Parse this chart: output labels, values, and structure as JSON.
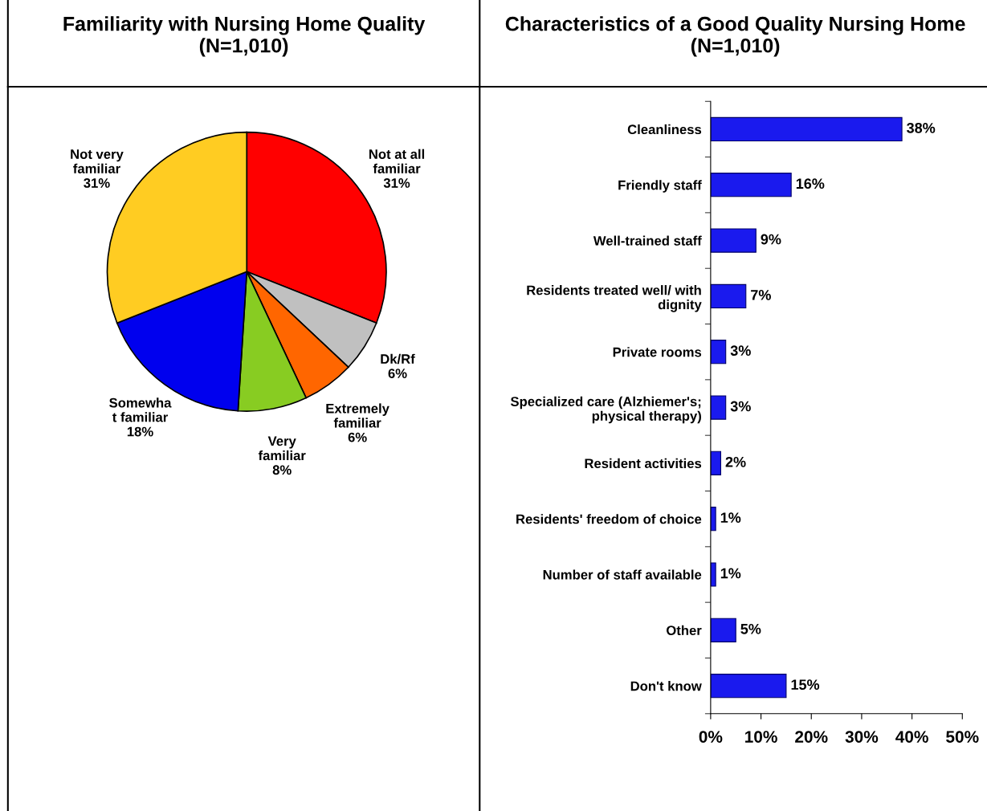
{
  "chart_data": [
    {
      "type": "pie",
      "title": "Familiarity with Nursing Home Quality\n(N=1,010)",
      "categories": [
        "Not at all\nfamiliar",
        "Dk/Rf",
        "Extremely\nfamiliar",
        "Very\nfamiliar",
        "Somewha\nt familiar",
        "Not very\nfamiliar"
      ],
      "values": [
        31,
        6,
        6,
        8,
        18,
        31
      ],
      "value_labels": [
        "31%",
        "6%",
        "6%",
        "8%",
        "18%",
        "31%"
      ],
      "colors": [
        "#ff0000",
        "#c0c0c0",
        "#ff6600",
        "#88cc22",
        "#0000ee",
        "#ffcc22"
      ]
    },
    {
      "type": "bar",
      "orientation": "horizontal",
      "title": "Characteristics of a Good Quality Nursing Home\n(N=1,010)",
      "categories": [
        "Cleanliness",
        "Friendly staff",
        "Well-trained staff",
        "Residents treated well/ with\ndignity",
        "Private rooms",
        "Specialized care (Alzhiemer's;\nphysical therapy)",
        "Resident activities",
        "Residents' freedom of choice",
        "Number of staff available",
        "Other",
        "Don't know"
      ],
      "values": [
        38,
        16,
        9,
        7,
        3,
        3,
        2,
        1,
        1,
        5,
        15
      ],
      "value_labels": [
        "38%",
        "16%",
        "9%",
        "7%",
        "3%",
        "3%",
        "2%",
        "1%",
        "1%",
        "5%",
        "15%"
      ],
      "color": "#1a1aee",
      "xlim": [
        0,
        50
      ],
      "xticks": [
        {
          "value": 0,
          "label": "0%"
        },
        {
          "value": 10,
          "label": "10%"
        },
        {
          "value": 20,
          "label": "20%"
        },
        {
          "value": 30,
          "label": "30%"
        },
        {
          "value": 40,
          "label": "40%"
        },
        {
          "value": 50,
          "label": "50%"
        }
      ],
      "grid": false
    }
  ]
}
